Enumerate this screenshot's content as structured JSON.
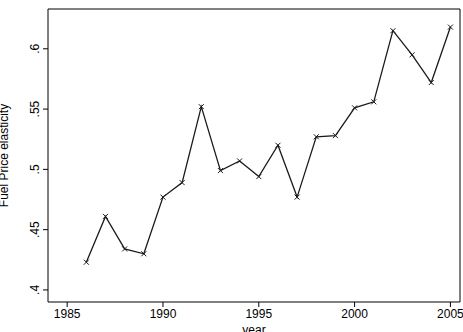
{
  "chart_data": {
    "type": "line",
    "x_label": "year",
    "y_label": "Fuel Price elasticity",
    "x": [
      1986,
      1987,
      1988,
      1989,
      1990,
      1991,
      1992,
      1993,
      1994,
      1995,
      1996,
      1997,
      1998,
      1999,
      2000,
      2001,
      2002,
      2003,
      2004,
      2005
    ],
    "values": [
      0.423,
      0.461,
      0.434,
      0.43,
      0.477,
      0.489,
      0.552,
      0.499,
      0.507,
      0.494,
      0.52,
      0.477,
      0.527,
      0.528,
      0.551,
      0.556,
      0.615,
      0.595,
      0.572,
      0.618
    ],
    "color": "#1a1a1a",
    "marker": "x",
    "xlim": [
      1984,
      2005.5
    ],
    "xticks": [
      1985,
      1990,
      1995,
      2000,
      2005
    ],
    "ylim": [
      0.39,
      0.633
    ],
    "yticks": [
      {
        "value": 0.4,
        "label": ".4"
      },
      {
        "value": 0.45,
        "label": ".45"
      },
      {
        "value": 0.5,
        "label": ".5"
      },
      {
        "value": 0.55,
        "label": ".55"
      },
      {
        "value": 0.6,
        "label": ".6"
      }
    ],
    "grid": false
  }
}
